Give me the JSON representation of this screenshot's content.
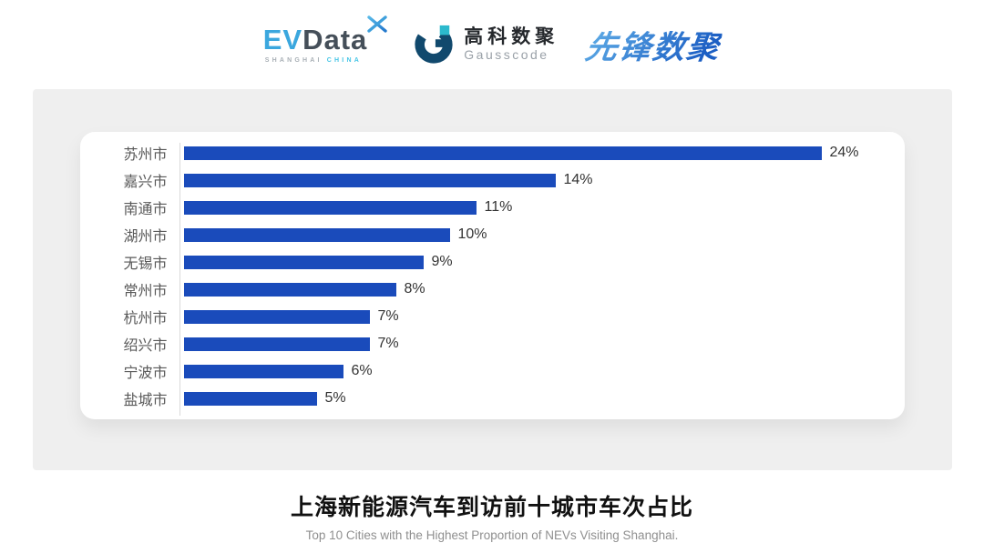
{
  "logos": {
    "evdata": {
      "ev": "EV",
      "data": "Data",
      "sub": "SHANGHAI",
      "country": "CHINA"
    },
    "gausscode": {
      "cn": "高科数聚",
      "en": "Gausscode"
    },
    "pioneer": {
      "text": "先锋数聚"
    }
  },
  "colors": {
    "bar": "#1a4bbb",
    "panel_bg": "#efefef",
    "card_bg": "#ffffff",
    "axis": "#d9d9d9",
    "evdata_blue": "#3ba7de",
    "evdata_dark": "#454f59",
    "gausscode_dark": "#11496d",
    "gausscode_accent": "#2cb9cd",
    "pioneer_blue": "#2a72cf"
  },
  "chart_data": {
    "type": "bar",
    "orientation": "horizontal",
    "categories": [
      "苏州市",
      "嘉兴市",
      "南通市",
      "湖州市",
      "无锡市",
      "常州市",
      "杭州市",
      "绍兴市",
      "宁波市",
      "盐城市"
    ],
    "values": [
      24,
      14,
      11,
      10,
      9,
      8,
      7,
      7,
      6,
      5
    ],
    "value_labels": [
      "24%",
      "14%",
      "11%",
      "10%",
      "9%",
      "8%",
      "7%",
      "7%",
      "6%",
      "5%"
    ],
    "xlim": [
      0,
      25
    ],
    "grid": false,
    "legend": "none",
    "bar_color": "#1a4bbb",
    "title": "上海新能源汽车到访前十城市车次占比",
    "subtitle": "Top 10 Cities with the Highest Proportion of  NEVs Visiting Shanghai."
  }
}
